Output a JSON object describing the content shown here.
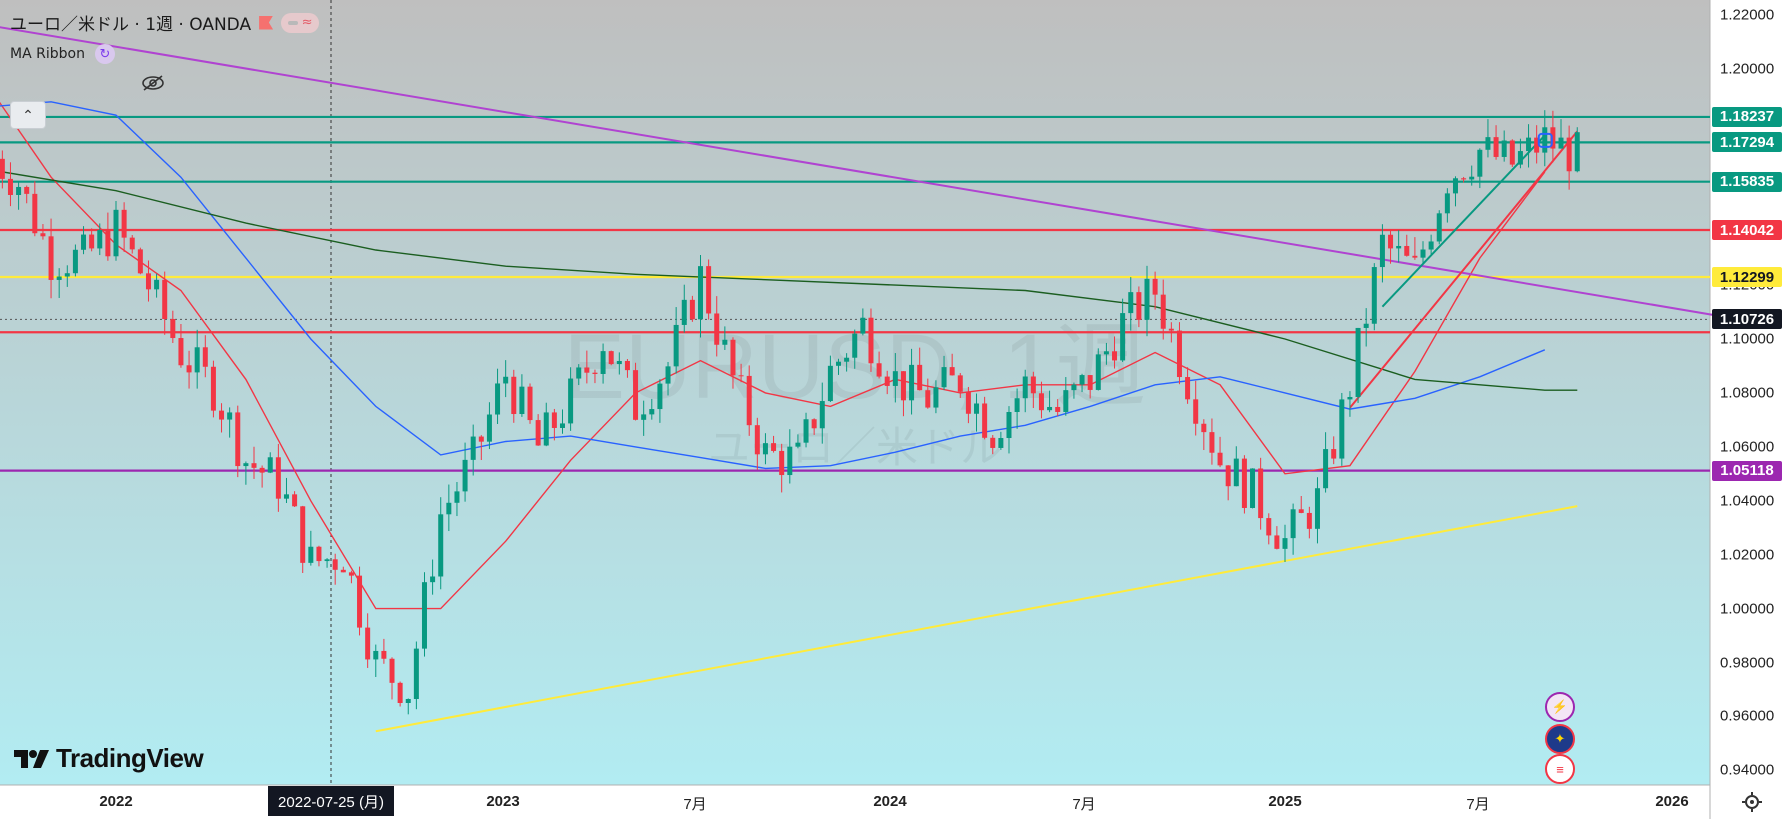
{
  "header": {
    "symbol_title": "ユーロ／米ドル · 1週 · OANDA",
    "indicator_name": "MA Ribbon"
  },
  "watermark": {
    "line1": "EURUSD, 1週",
    "line2": "ユーロ／米ドル"
  },
  "branding": {
    "logo_text": "TradingView"
  },
  "x_axis": {
    "labels": [
      {
        "text": "2022",
        "bold": true
      },
      {
        "text": "2023",
        "bold": true
      },
      {
        "text": "7月",
        "bold": false
      },
      {
        "text": "2024",
        "bold": true
      },
      {
        "text": "7月",
        "bold": false
      },
      {
        "text": "2025",
        "bold": true
      },
      {
        "text": "7月",
        "bold": false
      },
      {
        "text": "2026",
        "bold": true
      }
    ],
    "crosshair_date": "2022-07-25 (月)"
  },
  "y_axis": {
    "ticks": [
      "1.22000",
      "1.20000",
      "1.12000",
      "1.10000",
      "1.08000",
      "1.06000",
      "1.04000",
      "1.02000",
      "1.00000",
      "0.98000",
      "0.96000",
      "0.94000"
    ]
  },
  "price_badges": [
    {
      "text": "1.18237",
      "bg": "#089981",
      "fg": "#ffffff"
    },
    {
      "text": "1.17294",
      "bg": "#089981",
      "fg": "#ffffff"
    },
    {
      "text": "1.15835",
      "bg": "#089981",
      "fg": "#ffffff"
    },
    {
      "text": "1.14042",
      "bg": "#f23645",
      "fg": "#ffffff"
    },
    {
      "text": "1.12299",
      "bg": "#ffeb3b",
      "fg": "#131722"
    },
    {
      "text": "1.10726",
      "bg": "#131722",
      "fg": "#ffffff"
    },
    {
      "text": "1.05118",
      "bg": "#9c27b0",
      "fg": "#ffffff"
    }
  ],
  "colors": {
    "bull": "#089981",
    "bear": "#f23645",
    "ma_short": "#f23645",
    "ma_mid": "#2962ff",
    "ma_long": "#1b5e20",
    "trend_purple": "#b043d1",
    "trend_yellow": "#ffeb3b"
  },
  "event_icons": [
    "lightning-icon",
    "eu-flag-icon",
    "us-flag-icon"
  ],
  "chart_data": {
    "type": "candlestick",
    "title": "",
    "timeframe": "1週",
    "ylim": [
      0.935,
      1.225
    ],
    "x_range": [
      "2021-09",
      "2026-03"
    ],
    "horizontal_levels": [
      {
        "value": 1.18237,
        "color": "#089981"
      },
      {
        "value": 1.17294,
        "color": "#089981"
      },
      {
        "value": 1.15835,
        "color": "#089981"
      },
      {
        "value": 1.14042,
        "color": "#f23645"
      },
      {
        "value": 1.12299,
        "color": "#ffeb3b"
      },
      {
        "value": 1.1025,
        "color": "#f23645"
      },
      {
        "value": 1.05118,
        "color": "#9c27b0"
      }
    ],
    "last_price": 1.10726,
    "trendlines": [
      {
        "color": "#b043d1",
        "from": [
          "2021-09",
          1.2165
        ],
        "to": [
          "2026-03",
          1.1073
        ]
      },
      {
        "color": "#ffeb3b",
        "from": [
          "2022-09",
          0.9545
        ],
        "to": [
          "2025-10",
          1.038
        ]
      },
      {
        "color": "#f23645",
        "from": [
          "2025-03",
          1.0745
        ],
        "to": [
          "2025-10",
          1.177
        ]
      },
      {
        "color": "#089981",
        "from": [
          "2025-04",
          1.112
        ],
        "to": [
          "2025-09",
          1.1755
        ]
      }
    ],
    "price_path": [
      [
        "2021-09",
        1.17
      ],
      [
        "2021-10",
        1.158
      ],
      [
        "2021-11",
        1.13
      ],
      [
        "2021-12",
        1.13
      ],
      [
        "2022-01",
        1.141
      ],
      [
        "2022-02",
        1.12
      ],
      [
        "2022-03",
        1.095
      ],
      [
        "2022-04",
        1.082
      ],
      [
        "2022-05",
        1.055
      ],
      [
        "2022-06",
        1.047
      ],
      [
        "2022-07",
        1.017
      ],
      [
        "2022-08",
        1.02
      ],
      [
        "2022-09",
        0.98
      ],
      [
        "2022-10",
        0.97
      ],
      [
        "2022-11",
        1.035
      ],
      [
        "2022-12",
        1.055
      ],
      [
        "2023-01",
        1.087
      ],
      [
        "2023-02",
        1.06
      ],
      [
        "2023-03",
        1.078
      ],
      [
        "2023-04",
        1.1
      ],
      [
        "2023-05",
        1.075
      ],
      [
        "2023-06",
        1.09
      ],
      [
        "2023-07",
        1.123
      ],
      [
        "2023-08",
        1.085
      ],
      [
        "2023-09",
        1.057
      ],
      [
        "2023-10",
        1.055
      ],
      [
        "2023-11",
        1.088
      ],
      [
        "2023-12",
        1.105
      ],
      [
        "2024-01",
        1.085
      ],
      [
        "2024-02",
        1.078
      ],
      [
        "2024-03",
        1.085
      ],
      [
        "2024-04",
        1.066
      ],
      [
        "2024-05",
        1.083
      ],
      [
        "2024-06",
        1.073
      ],
      [
        "2024-07",
        1.085
      ],
      [
        "2024-08",
        1.106
      ],
      [
        "2024-09",
        1.118
      ],
      [
        "2024-10",
        1.085
      ],
      [
        "2024-11",
        1.055
      ],
      [
        "2024-12",
        1.043
      ],
      [
        "2025-01",
        1.025
      ],
      [
        "2025-02",
        1.04
      ],
      [
        "2025-03",
        1.083
      ],
      [
        "2025-04",
        1.135
      ],
      [
        "2025-05",
        1.125
      ],
      [
        "2025-06",
        1.16
      ],
      [
        "2025-07",
        1.17
      ],
      [
        "2025-08",
        1.165
      ],
      [
        "2025-09",
        1.174
      ],
      [
        "2025-10",
        1.168
      ]
    ],
    "moving_averages": [
      {
        "color": "#f23645",
        "values": [
          [
            "2021-09",
            1.195
          ],
          [
            "2021-11",
            1.16
          ],
          [
            "2022-01",
            1.135
          ],
          [
            "2022-03",
            1.118
          ],
          [
            "2022-05",
            1.085
          ],
          [
            "2022-07",
            1.04
          ],
          [
            "2022-09",
            1.0
          ],
          [
            "2022-11",
            1.0
          ],
          [
            "2023-01",
            1.025
          ],
          [
            "2023-03",
            1.055
          ],
          [
            "2023-05",
            1.08
          ],
          [
            "2023-07",
            1.092
          ],
          [
            "2023-09",
            1.08
          ],
          [
            "2023-11",
            1.075
          ],
          [
            "2024-01",
            1.085
          ],
          [
            "2024-03",
            1.08
          ],
          [
            "2024-05",
            1.083
          ],
          [
            "2024-07",
            1.083
          ],
          [
            "2024-09",
            1.095
          ],
          [
            "2024-11",
            1.083
          ],
          [
            "2025-01",
            1.05
          ],
          [
            "2025-03",
            1.053
          ],
          [
            "2025-05",
            1.088
          ],
          [
            "2025-07",
            1.13
          ],
          [
            "2025-09",
            1.162
          ]
        ]
      },
      {
        "color": "#2962ff",
        "values": [
          [
            "2021-09",
            1.186
          ],
          [
            "2021-11",
            1.188
          ],
          [
            "2022-01",
            1.183
          ],
          [
            "2022-03",
            1.16
          ],
          [
            "2022-05",
            1.13
          ],
          [
            "2022-07",
            1.1
          ],
          [
            "2022-09",
            1.075
          ],
          [
            "2022-11",
            1.057
          ],
          [
            "2023-01",
            1.062
          ],
          [
            "2023-03",
            1.064
          ],
          [
            "2023-05",
            1.06
          ],
          [
            "2023-07",
            1.056
          ],
          [
            "2023-09",
            1.052
          ],
          [
            "2023-11",
            1.053
          ],
          [
            "2024-01",
            1.058
          ],
          [
            "2024-03",
            1.064
          ],
          [
            "2024-05",
            1.068
          ],
          [
            "2024-07",
            1.075
          ],
          [
            "2024-09",
            1.083
          ],
          [
            "2024-11",
            1.086
          ],
          [
            "2025-01",
            1.08
          ],
          [
            "2025-03",
            1.074
          ],
          [
            "2025-05",
            1.078
          ],
          [
            "2025-07",
            1.086
          ],
          [
            "2025-09",
            1.096
          ]
        ]
      },
      {
        "color": "#1b5e20",
        "values": [
          [
            "2021-09",
            1.163
          ],
          [
            "2022-01",
            1.155
          ],
          [
            "2022-05",
            1.143
          ],
          [
            "2022-09",
            1.133
          ],
          [
            "2023-01",
            1.127
          ],
          [
            "2023-05",
            1.124
          ],
          [
            "2023-09",
            1.122
          ],
          [
            "2024-01",
            1.12
          ],
          [
            "2024-05",
            1.118
          ],
          [
            "2024-09",
            1.112
          ],
          [
            "2025-01",
            1.1
          ],
          [
            "2025-05",
            1.085
          ],
          [
            "2025-09",
            1.081
          ],
          [
            "2025-10",
            1.081
          ]
        ]
      }
    ]
  }
}
